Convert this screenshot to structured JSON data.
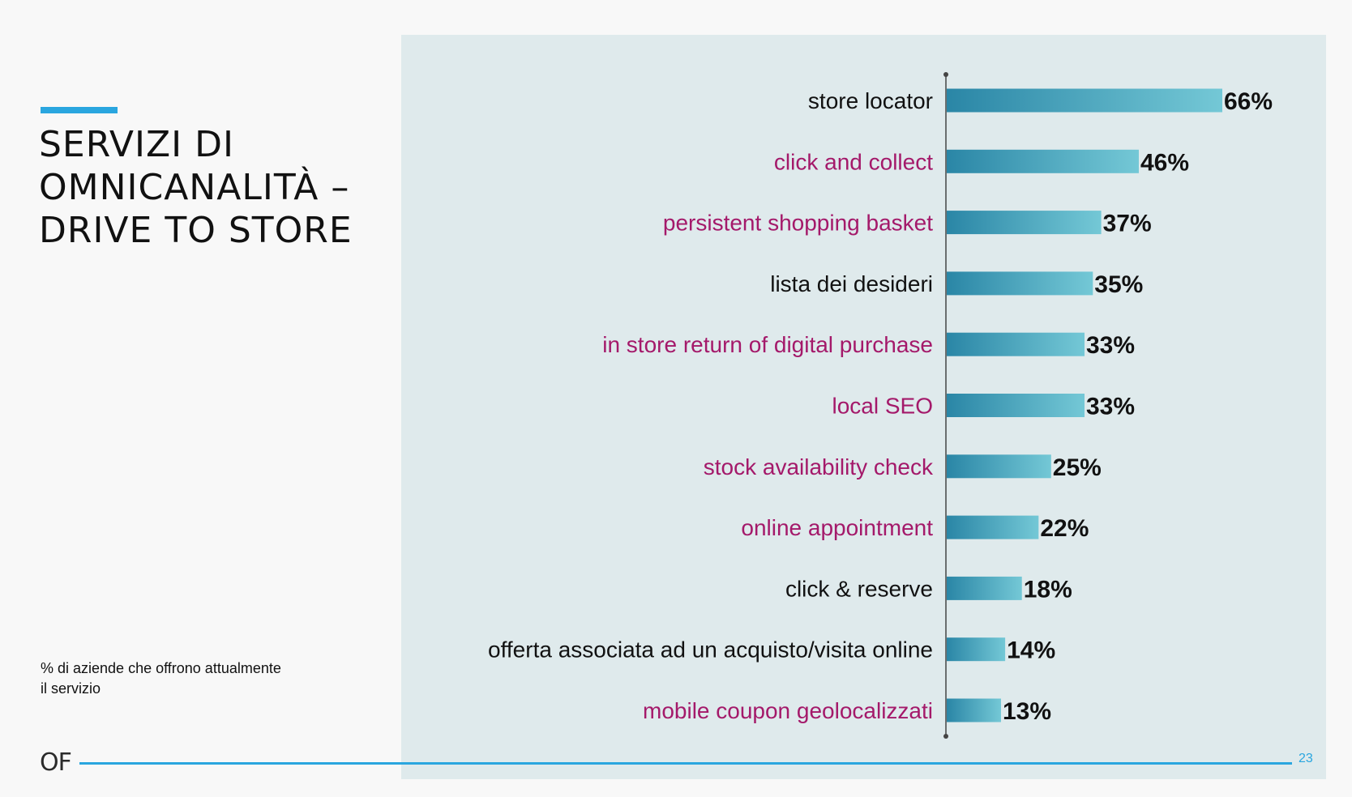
{
  "slide": {
    "title": "SERVIZI DI\nOMNICANALITÀ –\nDRIVE TO STORE",
    "note": "% di aziende che offrono attualmente\nil servizio",
    "logo": "OF",
    "page_number": "23"
  },
  "colors": {
    "accent": "#2aa6df",
    "panel": "#dfeaec",
    "bar_start": "#2a86a6",
    "bar_end": "#74c8d6",
    "highlight_label": "#a4196a",
    "normal_label": "#111111"
  },
  "chart_data": {
    "type": "bar",
    "orientation": "horizontal",
    "categories": [
      "store locator",
      "click and collect",
      "persistent shopping basket",
      "lista dei desideri",
      "in store return of digital purchase",
      "local SEO",
      "stock availability check",
      "online appointment",
      "click & reserve",
      "offerta associata ad un acquisto/visita online",
      "mobile coupon geolocalizzati"
    ],
    "values": [
      66,
      46,
      37,
      35,
      33,
      33,
      25,
      22,
      18,
      14,
      13
    ],
    "value_labels": [
      "66%",
      "46%",
      "37%",
      "35%",
      "33%",
      "33%",
      "25%",
      "22%",
      "18%",
      "14%",
      "13%"
    ],
    "highlighted": [
      false,
      true,
      true,
      false,
      true,
      true,
      true,
      true,
      false,
      false,
      true
    ],
    "unit": "%",
    "title": "",
    "xlabel": "",
    "ylabel": "",
    "xlim": [
      0,
      66
    ],
    "grid": false,
    "legend": "none"
  }
}
